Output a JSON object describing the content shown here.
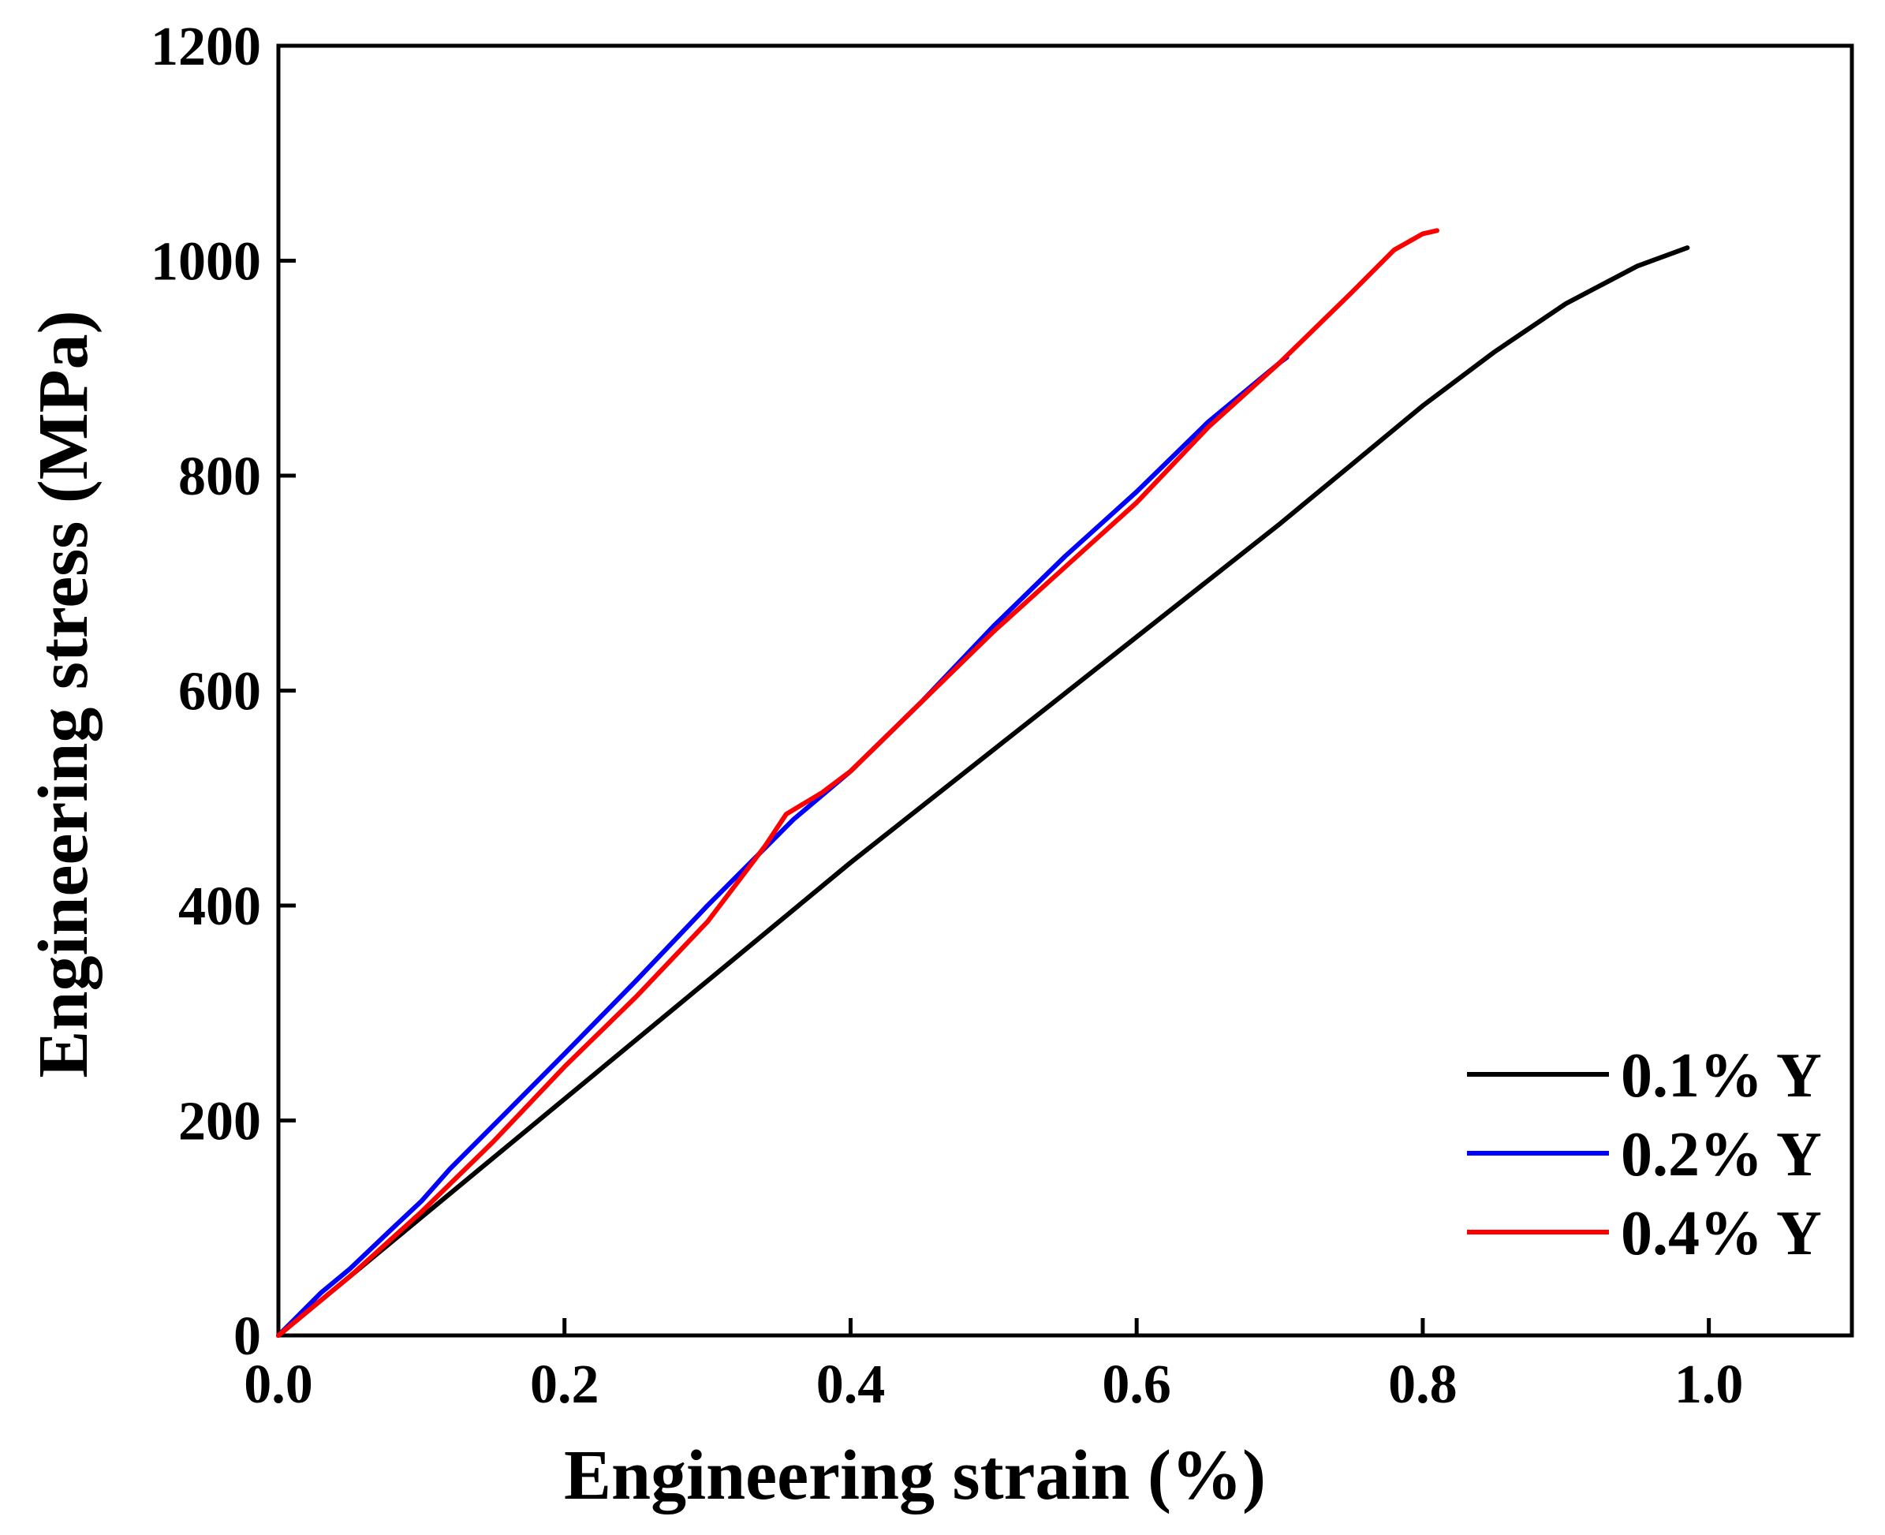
{
  "chart_data": {
    "type": "line",
    "title": "",
    "xlabel": "Engineering strain (%)",
    "ylabel": "Engineering stress (MPa)",
    "xlim": [
      0.0,
      1.1
    ],
    "ylim": [
      0,
      1200
    ],
    "xticks": [
      0.0,
      0.2,
      0.4,
      0.6,
      0.8,
      1.0
    ],
    "xtick_labels": [
      "0.0",
      "0.2",
      "0.4",
      "0.6",
      "0.8",
      "1.0"
    ],
    "yticks": [
      0,
      200,
      400,
      600,
      800,
      1000,
      1200
    ],
    "ytick_labels": [
      "0",
      "200",
      "400",
      "600",
      "800",
      "1000",
      "1200"
    ],
    "grid": false,
    "legend_position": "bottom-right",
    "series": [
      {
        "name": "0.1% Y",
        "color": "#000000",
        "x": [
          0.0,
          0.05,
          0.1,
          0.2,
          0.3,
          0.4,
          0.5,
          0.6,
          0.7,
          0.75,
          0.8,
          0.85,
          0.9,
          0.95,
          0.985
        ],
        "y": [
          0,
          55,
          110,
          220,
          330,
          440,
          545,
          650,
          755,
          810,
          865,
          915,
          960,
          995,
          1012
        ]
      },
      {
        "name": "0.2% Y",
        "color": "#0000ff",
        "x": [
          0.0,
          0.03,
          0.05,
          0.08,
          0.1,
          0.12,
          0.15,
          0.2,
          0.25,
          0.3,
          0.33,
          0.36,
          0.4,
          0.45,
          0.5,
          0.55,
          0.6,
          0.65,
          0.7,
          0.705
        ],
        "y": [
          0,
          40,
          62,
          100,
          125,
          155,
          195,
          262,
          330,
          400,
          440,
          480,
          525,
          590,
          660,
          725,
          785,
          850,
          905,
          910
        ]
      },
      {
        "name": "0.4% Y",
        "color": "#ff0000",
        "x": [
          0.0,
          0.05,
          0.1,
          0.15,
          0.2,
          0.25,
          0.3,
          0.32,
          0.34,
          0.355,
          0.38,
          0.4,
          0.45,
          0.5,
          0.55,
          0.6,
          0.65,
          0.7,
          0.75,
          0.78,
          0.8,
          0.81
        ],
        "y": [
          0,
          55,
          115,
          180,
          250,
          315,
          385,
          420,
          455,
          485,
          505,
          525,
          590,
          655,
          715,
          775,
          845,
          905,
          970,
          1010,
          1025,
          1028
        ]
      }
    ]
  }
}
